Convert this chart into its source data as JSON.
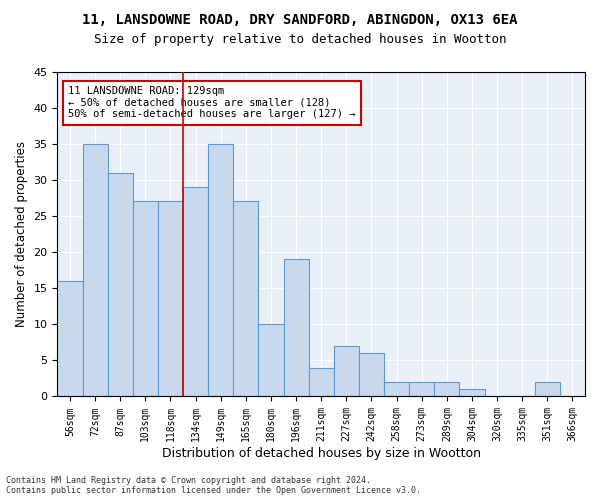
{
  "title1": "11, LANSDOWNE ROAD, DRY SANDFORD, ABINGDON, OX13 6EA",
  "title2": "Size of property relative to detached houses in Wootton",
  "xlabel": "Distribution of detached houses by size in Wootton",
  "ylabel": "Number of detached properties",
  "bin_labels": [
    "56sqm",
    "72sqm",
    "87sqm",
    "103sqm",
    "118sqm",
    "134sqm",
    "149sqm",
    "165sqm",
    "180sqm",
    "196sqm",
    "211sqm",
    "227sqm",
    "242sqm",
    "258sqm",
    "273sqm",
    "289sqm",
    "304sqm",
    "320sqm",
    "335sqm",
    "351sqm",
    "366sqm"
  ],
  "values": [
    16,
    35,
    31,
    27,
    27,
    29,
    35,
    27,
    10,
    19,
    4,
    7,
    6,
    2,
    2,
    2,
    1,
    0,
    0,
    2,
    0
  ],
  "bar_color": "#c8d9ed",
  "bar_edge_color": "#5b9bd5",
  "highlight_line_color": "#cc0000",
  "highlight_bin_index": 5,
  "annotation_text": "11 LANSDOWNE ROAD: 129sqm\n← 50% of detached houses are smaller (128)\n50% of semi-detached houses are larger (127) →",
  "annotation_box_facecolor": "#ffffff",
  "annotation_box_edgecolor": "#cc0000",
  "footer": "Contains HM Land Registry data © Crown copyright and database right 2024.\nContains public sector information licensed under the Open Government Licence v3.0.",
  "ylim": [
    0,
    45
  ],
  "yticks": [
    0,
    5,
    10,
    15,
    20,
    25,
    30,
    35,
    40,
    45
  ],
  "bg_color": "#eaf0f8",
  "title1_fontsize": 10,
  "title2_fontsize": 9,
  "xlabel_fontsize": 9,
  "ylabel_fontsize": 8.5
}
